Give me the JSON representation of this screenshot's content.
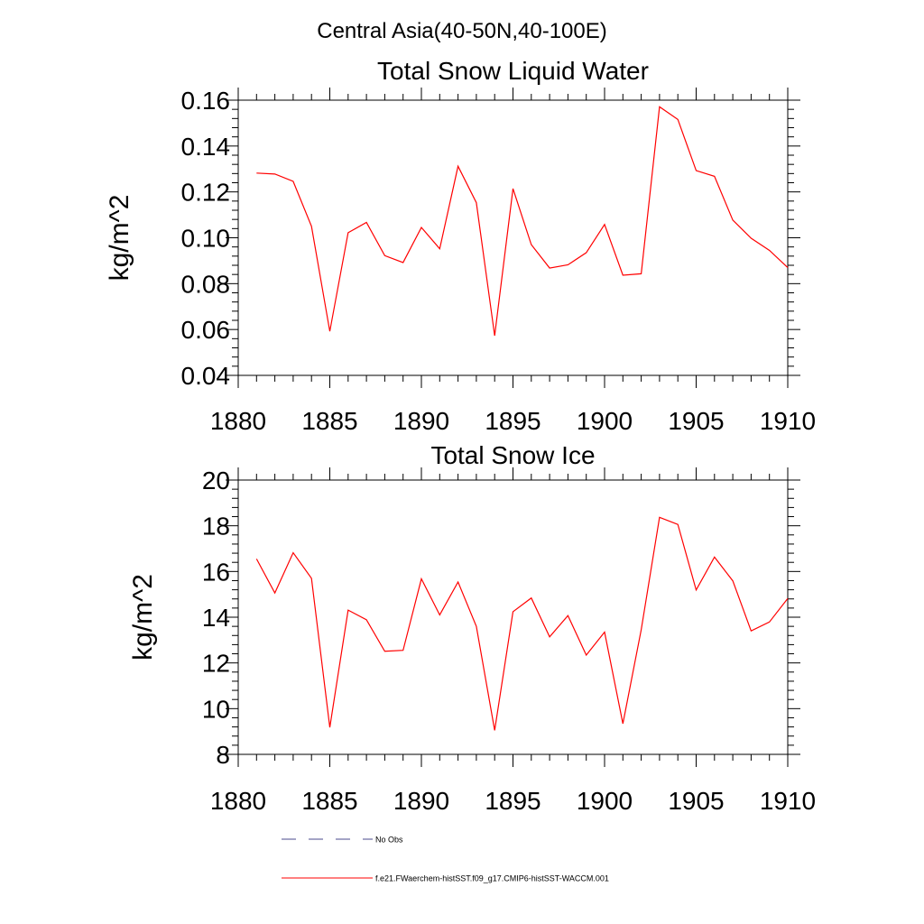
{
  "main_title": "Central Asia(40-50N,40-100E)",
  "chart_data": [
    {
      "type": "line",
      "title": "Total Snow Liquid Water",
      "xlabel": "",
      "ylabel": "kg/m^2",
      "xlim": [
        1880,
        1910
      ],
      "ylim": [
        0.04,
        0.16
      ],
      "x_ticks": [
        "1880",
        "1885",
        "1890",
        "1895",
        "1900",
        "1905",
        "1910"
      ],
      "y_ticks": [
        "0.04",
        "0.06",
        "0.08",
        "0.10",
        "0.12",
        "0.14",
        "0.16"
      ],
      "x": [
        1881,
        1882,
        1883,
        1884,
        1885,
        1886,
        1887,
        1888,
        1889,
        1890,
        1891,
        1892,
        1893,
        1894,
        1895,
        1896,
        1897,
        1898,
        1899,
        1900,
        1901,
        1902,
        1903,
        1904,
        1905,
        1906,
        1907,
        1908,
        1909,
        1910
      ],
      "series": [
        {
          "name": "f.e21.FWaerchem-histSST.f09_g17.CMIP6-histSST-WACCM.001",
          "color": "#ff0000",
          "values": [
            0.1282,
            0.1278,
            0.1246,
            0.105,
            0.0592,
            0.1022,
            0.1067,
            0.0922,
            0.0892,
            0.1045,
            0.0952,
            0.1312,
            0.1153,
            0.0573,
            0.1214,
            0.097,
            0.0868,
            0.0882,
            0.0935,
            0.1058,
            0.0837,
            0.0843,
            0.1571,
            0.1516,
            0.1293,
            0.1268,
            0.1077,
            0.0998,
            0.0945,
            0.087
          ]
        }
      ]
    },
    {
      "type": "line",
      "title": "Total Snow Ice",
      "xlabel": "",
      "ylabel": "kg/m^2",
      "xlim": [
        1880,
        1910
      ],
      "ylim": [
        8,
        20
      ],
      "x_ticks": [
        "1880",
        "1885",
        "1890",
        "1895",
        "1900",
        "1905",
        "1910"
      ],
      "y_ticks": [
        "8",
        "10",
        "12",
        "14",
        "16",
        "18",
        "20"
      ],
      "x": [
        1881,
        1882,
        1883,
        1884,
        1885,
        1886,
        1887,
        1888,
        1889,
        1890,
        1891,
        1892,
        1893,
        1894,
        1895,
        1896,
        1897,
        1898,
        1899,
        1900,
        1901,
        1902,
        1903,
        1904,
        1905,
        1906,
        1907,
        1908,
        1909,
        1910
      ],
      "series": [
        {
          "name": "f.e21.FWaerchem-histSST.f09_g17.CMIP6-histSST-WACCM.001",
          "color": "#ff0000",
          "values": [
            16.55,
            15.06,
            16.82,
            15.7,
            9.18,
            14.31,
            13.89,
            12.51,
            12.55,
            15.68,
            14.1,
            15.54,
            13.6,
            9.05,
            14.24,
            14.84,
            13.14,
            14.07,
            12.34,
            13.35,
            9.34,
            13.45,
            18.37,
            18.06,
            15.19,
            16.63,
            15.59,
            13.4,
            13.79,
            14.82
          ]
        }
      ]
    }
  ],
  "legend": [
    {
      "label": "No Obs",
      "color": "#4a4a8c",
      "style": "dashed"
    },
    {
      "label": "f.e21.FWaerchem-histSST.f09_g17.CMIP6-histSST-WACCM.001",
      "color": "#ff0000",
      "style": "solid"
    }
  ]
}
